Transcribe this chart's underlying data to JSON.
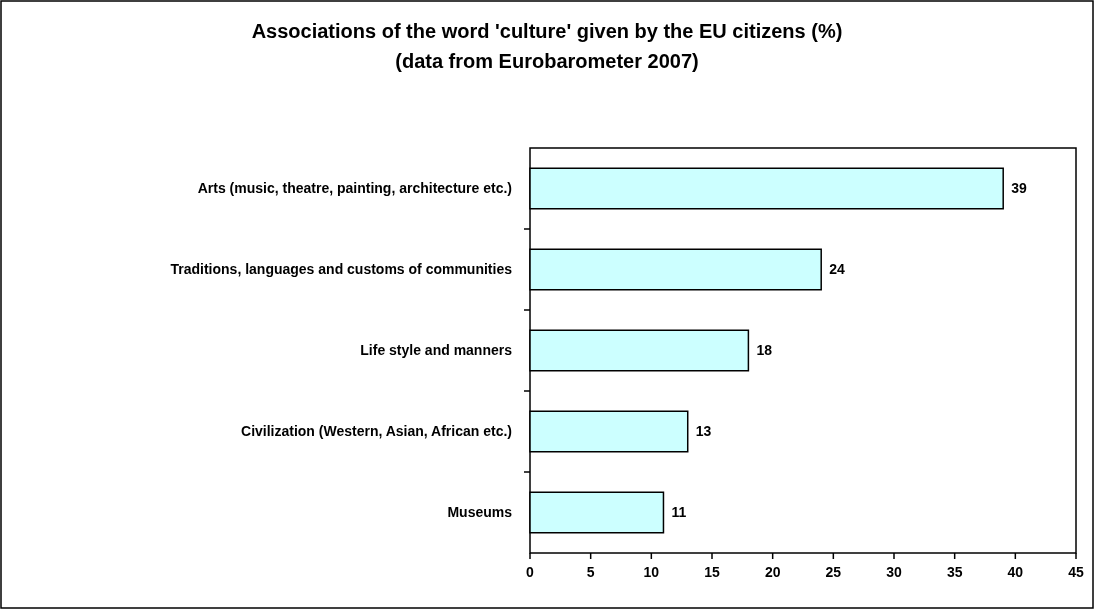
{
  "chart_data": {
    "type": "bar",
    "orientation": "horizontal",
    "title": "Associations of the word 'culture' given by the EU citizens (%)\n(data from Eurobarometer 2007)",
    "categories": [
      "Arts (music, theatre, painting, architecture etc.)",
      "Traditions, languages and customs of communities",
      "Life style and manners",
      "Civilization (Western, Asian, African etc.)",
      "Museums"
    ],
    "values": [
      39,
      24,
      18,
      13,
      11
    ],
    "color": "#ccffff",
    "data_labels": true,
    "xlim": [
      0,
      45
    ],
    "xticks": [
      0,
      5,
      10,
      15,
      20,
      25,
      30,
      35,
      40,
      45
    ]
  }
}
